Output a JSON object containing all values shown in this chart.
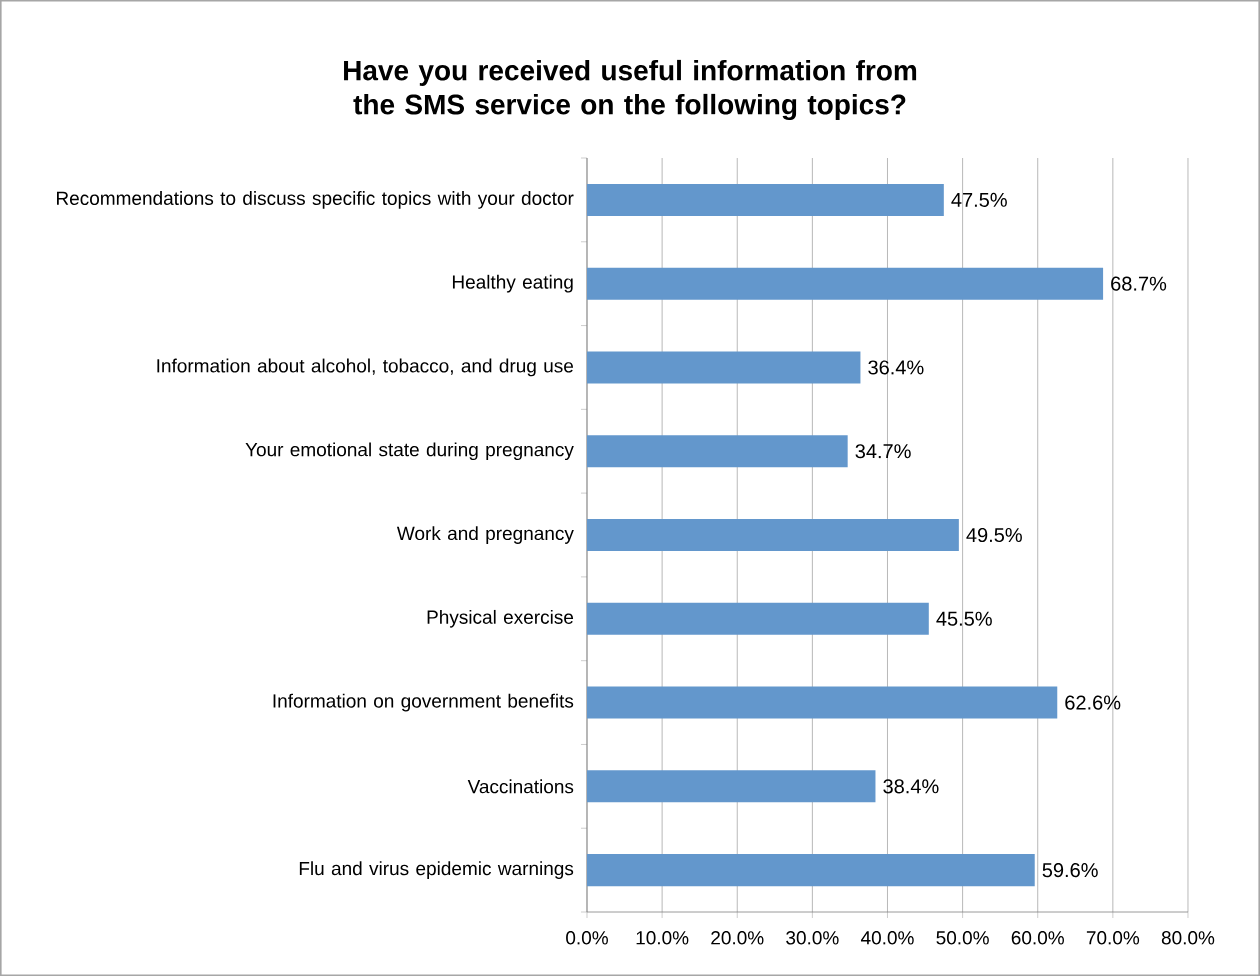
{
  "chart_data": {
    "type": "bar",
    "orientation": "horizontal",
    "title": "Have you received useful information from the SMS service on the following topics?",
    "categories": [
      "Recommendations to discuss specific topics with your doctor",
      "Healthy eating",
      "Information about alcohol, tobacco, and drug use",
      "Your emotional state during pregnancy",
      "Work and pregnancy",
      "Physical exercise",
      "Information on government benefits",
      "Vaccinations",
      "Flu and virus epidemic warnings"
    ],
    "values": [
      47.5,
      68.7,
      36.4,
      34.7,
      49.5,
      45.5,
      62.6,
      38.4,
      59.6
    ],
    "value_labels": [
      "47.5%",
      "68.7%",
      "36.4%",
      "34.7%",
      "49.5%",
      "45.5%",
      "62.6%",
      "38.4%",
      "59.6%"
    ],
    "color": "#6397cc",
    "xlim": [
      0,
      80
    ],
    "xticks": [
      {
        "value": 0,
        "label": "0.0%"
      },
      {
        "value": 10,
        "label": "10.0%"
      },
      {
        "value": 20,
        "label": "20.0%"
      },
      {
        "value": 30,
        "label": "30.0%"
      },
      {
        "value": 40,
        "label": "40.0%"
      },
      {
        "value": 50,
        "label": "50.0%"
      },
      {
        "value": 60,
        "label": "60.0%"
      },
      {
        "value": 70,
        "label": "70.0%"
      },
      {
        "value": 80,
        "label": "80.0%"
      }
    ],
    "grid": "x"
  }
}
